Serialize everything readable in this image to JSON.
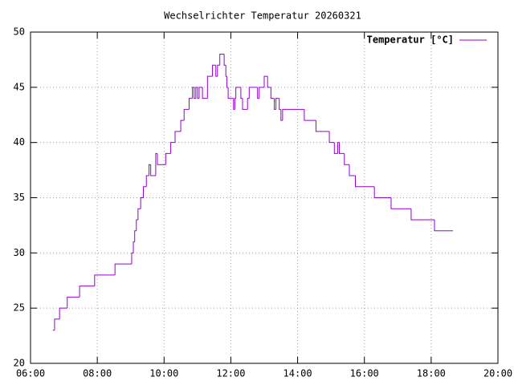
{
  "chart_data": {
    "type": "step-line",
    "title": "Wechselrichter Temperatur 20260321",
    "legend": "top-right",
    "grid": true,
    "xlim": [
      6,
      20
    ],
    "xticks": [
      {
        "value": 6,
        "label": "06:00"
      },
      {
        "value": 8,
        "label": "08:00"
      },
      {
        "value": 10,
        "label": "10:00"
      },
      {
        "value": 12,
        "label": "12:00"
      },
      {
        "value": 14,
        "label": "14:00"
      },
      {
        "value": 16,
        "label": "16:00"
      },
      {
        "value": 18,
        "label": "18:00"
      },
      {
        "value": 20,
        "label": "20:00"
      }
    ],
    "ylim": [
      20,
      50
    ],
    "yticks": [
      20,
      25,
      30,
      35,
      40,
      45,
      50
    ],
    "series": [
      {
        "name": "Temperatur [°C]",
        "color": "#9400d3",
        "x": [
          6.67,
          6.72,
          6.87,
          7.1,
          7.47,
          7.92,
          8.53,
          9.03,
          9.08,
          9.12,
          9.17,
          9.22,
          9.3,
          9.38,
          9.47,
          9.55,
          9.6,
          9.75,
          9.8,
          10.05,
          10.2,
          10.33,
          10.5,
          10.6,
          10.75,
          10.85,
          10.9,
          10.95,
          11.0,
          11.05,
          11.15,
          11.3,
          11.45,
          11.55,
          11.6,
          11.67,
          11.8,
          11.85,
          11.88,
          11.92,
          12.08,
          12.12,
          12.15,
          12.3,
          12.35,
          12.5,
          12.55,
          12.8,
          12.85,
          13.0,
          13.1,
          13.2,
          13.3,
          13.35,
          13.45,
          13.5,
          13.55,
          14.2,
          14.55,
          14.95,
          15.1,
          15.2,
          15.25,
          15.4,
          15.55,
          15.73,
          16.3,
          16.8,
          17.4,
          18.1,
          18.65
        ],
        "values": [
          23,
          24,
          25,
          26,
          27,
          28,
          29,
          30,
          31,
          32,
          33,
          34,
          35,
          36,
          37,
          38,
          37,
          39,
          38,
          39,
          40,
          41,
          42,
          43,
          44,
          45,
          44,
          45,
          44,
          45,
          44,
          46,
          47,
          46,
          47,
          48,
          47,
          46,
          45,
          44,
          43,
          44,
          45,
          44,
          43,
          44,
          45,
          44,
          45,
          46,
          45,
          44,
          43,
          44,
          43,
          42,
          43,
          42,
          41,
          40,
          39,
          40,
          39,
          38,
          37,
          36,
          35,
          34,
          33,
          32,
          32
        ]
      }
    ]
  }
}
